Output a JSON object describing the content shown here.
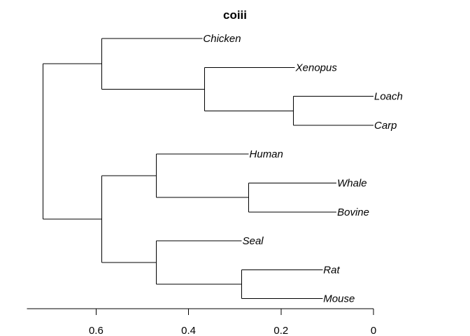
{
  "title": "coiii",
  "axis": {
    "ticks": [
      "0.6",
      "0.4",
      "0.2",
      "0"
    ]
  },
  "leaves": [
    {
      "label": "Chicken"
    },
    {
      "label": "Xenopus"
    },
    {
      "label": "Loach"
    },
    {
      "label": "Carp"
    },
    {
      "label": "Human"
    },
    {
      "label": "Whale"
    },
    {
      "label": "Bovine"
    },
    {
      "label": "Seal"
    },
    {
      "label": "Rat"
    },
    {
      "label": "Mouse"
    }
  ],
  "chart_data": {
    "type": "dendrogram",
    "title": "coiii",
    "axis_direction": "decreasing-left-to-right",
    "xlim": [
      0.75,
      0
    ],
    "ticks": [
      0.6,
      0.4,
      0.2,
      0
    ],
    "leaf_order": [
      "Chicken",
      "Xenopus",
      "Loach",
      "Carp",
      "Human",
      "Whale",
      "Bovine",
      "Seal",
      "Rat",
      "Mouse"
    ],
    "leaf_heights": {
      "Chicken": 0.37,
      "Xenopus": 0.17,
      "Loach": 0.0,
      "Carp": 0.0,
      "Human": 0.27,
      "Whale": 0.08,
      "Bovine": 0.08,
      "Seal": 0.285,
      "Rat": 0.11,
      "Mouse": 0.11
    },
    "merges": [
      {
        "members": [
          "Loach",
          "Carp"
        ],
        "height": 0.173
      },
      {
        "members": [
          "Xenopus",
          "Loach+Carp"
        ],
        "height": 0.365
      },
      {
        "members": [
          "Chicken",
          "Xenopus+Loach+Carp"
        ],
        "height": 0.588
      },
      {
        "members": [
          "Whale",
          "Bovine"
        ],
        "height": 0.27
      },
      {
        "members": [
          "Human",
          "Whale+Bovine"
        ],
        "height": 0.47
      },
      {
        "members": [
          "Rat",
          "Mouse"
        ],
        "height": 0.285
      },
      {
        "members": [
          "Seal",
          "Rat+Mouse"
        ],
        "height": 0.47
      },
      {
        "members": [
          "Human+Whale+Bovine",
          "Seal+Rat+Mouse"
        ],
        "height": 0.588
      },
      {
        "members": [
          "Chicken+Xenopus+Loach+Carp",
          "Human+Whale+Bovine+Seal+Rat+Mouse"
        ],
        "height": 0.715
      }
    ]
  }
}
